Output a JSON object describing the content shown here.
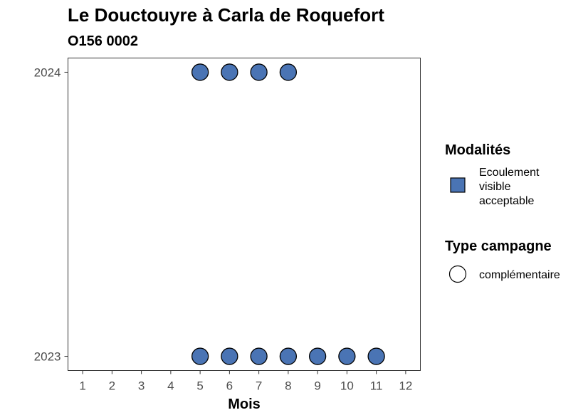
{
  "chart_data": {
    "type": "scatter",
    "title": "Le Douctouyre à Carla de Roquefort",
    "subtitle": "O156 0002",
    "xlabel": "Mois",
    "ylabel": "",
    "x_ticks": [
      "1",
      "2",
      "3",
      "4",
      "5",
      "6",
      "7",
      "8",
      "9",
      "10",
      "11",
      "12"
    ],
    "y_ticks": [
      "2023",
      "2024"
    ],
    "xlim": [
      0.5,
      12.5
    ],
    "ylim": [
      2022.95,
      2024.05
    ],
    "grid": false,
    "legend_position": "right",
    "series": [
      {
        "name": "Ecoulement visible acceptable",
        "campaign": "complémentaire",
        "color": "#4a74b4",
        "points": [
          {
            "x": 5,
            "y": 2024
          },
          {
            "x": 6,
            "y": 2024
          },
          {
            "x": 7,
            "y": 2024
          },
          {
            "x": 8,
            "y": 2024
          },
          {
            "x": 5,
            "y": 2023
          },
          {
            "x": 6,
            "y": 2023
          },
          {
            "x": 7,
            "y": 2023
          },
          {
            "x": 8,
            "y": 2023
          },
          {
            "x": 9,
            "y": 2023
          },
          {
            "x": 10,
            "y": 2023
          },
          {
            "x": 11,
            "y": 2023
          }
        ]
      }
    ]
  },
  "legend": {
    "modalites_title": "Modalités",
    "modalites_items": [
      {
        "label_lines": [
          "Ecoulement",
          "visible",
          "acceptable"
        ],
        "color": "#4a74b4"
      }
    ],
    "campagne_title": "Type campagne",
    "campagne_items": [
      {
        "label": "complémentaire"
      }
    ]
  }
}
